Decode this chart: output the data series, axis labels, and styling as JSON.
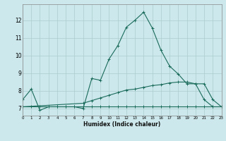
{
  "xlabel": "Humidex (Indice chaleur)",
  "bg_color": "#cce8ec",
  "grid_color": "#aacccc",
  "line_color": "#1a6b5a",
  "x_min": 0,
  "x_max": 23,
  "y_min": 6.6,
  "y_max": 12.9,
  "yticks": [
    7,
    8,
    9,
    10,
    11,
    12
  ],
  "xticks": [
    0,
    1,
    2,
    3,
    4,
    5,
    6,
    7,
    8,
    9,
    10,
    11,
    12,
    13,
    14,
    15,
    16,
    17,
    18,
    19,
    20,
    21,
    22,
    23
  ],
  "series1_x": [
    0,
    1,
    2,
    3,
    4,
    5,
    6,
    7,
    8,
    9,
    10,
    11,
    12,
    13,
    14,
    15,
    16,
    17,
    18,
    19,
    20,
    21,
    22,
    23
  ],
  "series1_y": [
    7.5,
    8.1,
    6.9,
    7.1,
    7.1,
    7.1,
    7.1,
    7.0,
    8.7,
    8.6,
    9.8,
    10.55,
    11.6,
    12.0,
    12.45,
    11.55,
    10.3,
    9.4,
    8.95,
    8.4,
    8.4,
    7.5,
    7.1,
    7.1
  ],
  "series2_x": [
    0,
    7,
    8,
    9,
    10,
    11,
    12,
    13,
    14,
    15,
    16,
    17,
    18,
    19,
    20,
    21,
    22,
    23
  ],
  "series2_y": [
    7.1,
    7.3,
    7.45,
    7.6,
    7.75,
    7.9,
    8.05,
    8.1,
    8.2,
    8.3,
    8.35,
    8.45,
    8.5,
    8.5,
    8.4,
    8.4,
    7.5,
    7.1
  ],
  "series3_x": [
    0,
    1,
    2,
    3,
    4,
    5,
    6,
    7,
    8,
    9,
    10,
    11,
    12,
    13,
    14,
    15,
    16,
    17,
    18,
    19,
    20,
    21,
    22,
    23
  ],
  "series3_y": [
    7.1,
    7.1,
    7.1,
    7.1,
    7.1,
    7.1,
    7.1,
    7.1,
    7.1,
    7.1,
    7.1,
    7.1,
    7.1,
    7.1,
    7.1,
    7.1,
    7.1,
    7.1,
    7.1,
    7.1,
    7.1,
    7.1,
    7.1,
    7.1
  ]
}
